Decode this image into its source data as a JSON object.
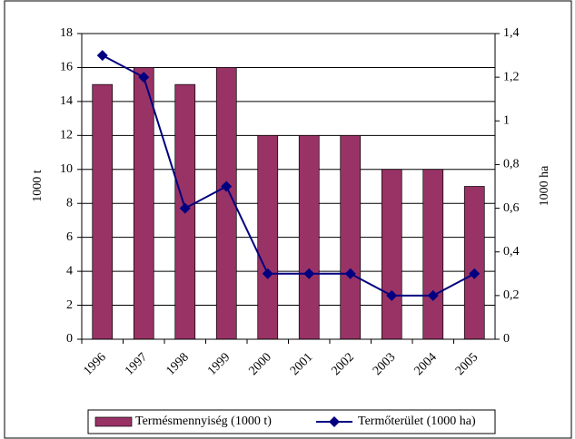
{
  "chart_data": {
    "type": "bar",
    "categories": [
      "1996",
      "1997",
      "1998",
      "1999",
      "2000",
      "2001",
      "2002",
      "2003",
      "2004",
      "2005"
    ],
    "series": [
      {
        "name": "Termésmennyiség (1000 t)",
        "type": "bar",
        "color": "#993366",
        "values": [
          15,
          16,
          15,
          16,
          12,
          12,
          12,
          10,
          10,
          9
        ]
      },
      {
        "name": "Termőterület (1000 ha)",
        "type": "line",
        "axis": "y2",
        "color": "#000080",
        "values": [
          1.3,
          1.2,
          0.6,
          0.7,
          0.3,
          0.3,
          0.3,
          0.2,
          0.2,
          0.3
        ]
      }
    ],
    "ylabel": "1000 t",
    "y2label": "1000 ha",
    "ylim": [
      0,
      18
    ],
    "yticks": [
      0,
      2,
      4,
      6,
      8,
      10,
      12,
      14,
      16,
      18
    ],
    "y2lim": [
      0,
      1.4
    ],
    "y2ticks": [
      0,
      {
        "value": 0.2,
        "label": "0,2"
      },
      {
        "value": 0.4,
        "label": "0,4"
      },
      {
        "value": 0.6,
        "label": "0,6"
      },
      {
        "value": 0.8,
        "label": "0,8"
      },
      1,
      {
        "value": 1.2,
        "label": "1,2"
      },
      {
        "value": 1.4,
        "label": "1,4"
      }
    ],
    "grid": true,
    "legend": "bottom"
  }
}
